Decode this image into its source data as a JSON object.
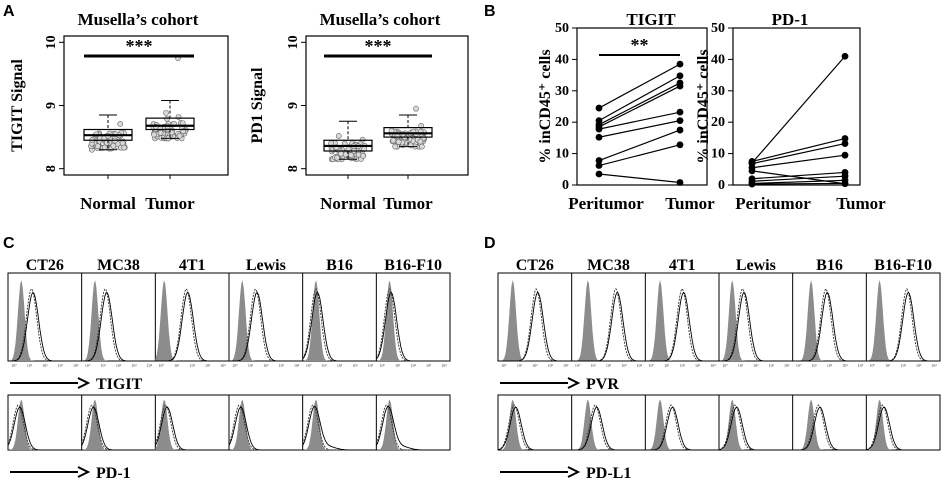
{
  "chart_data": [
    {
      "panel": "A",
      "type": "box",
      "title": "Musella’s cohort",
      "ylabel": "TIGIT Signal",
      "categories": [
        "Normal",
        "Tumor"
      ],
      "yticks": [
        "8",
        "9",
        "10"
      ],
      "ylim": [
        7.9,
        10.1
      ],
      "boxes": [
        {
          "min": 8.3,
          "q1": 8.45,
          "median": 8.53,
          "q3": 8.62,
          "max": 8.85
        },
        {
          "min": 8.48,
          "q1": 8.62,
          "median": 8.68,
          "q3": 8.8,
          "max": 9.08
        }
      ],
      "outliers": [
        [],
        [
          9.75
        ]
      ],
      "significance": "***"
    },
    {
      "panel": "A",
      "type": "box",
      "title": "Musella’s cohort",
      "ylabel": "PD1 Signal",
      "categories": [
        "Normal",
        "Tumor"
      ],
      "yticks": [
        "8",
        "9",
        "10"
      ],
      "ylim": [
        7.9,
        10.1
      ],
      "boxes": [
        {
          "min": 8.15,
          "q1": 8.28,
          "median": 8.36,
          "q3": 8.45,
          "max": 8.75
        },
        {
          "min": 8.35,
          "q1": 8.5,
          "median": 8.56,
          "q3": 8.65,
          "max": 8.85
        }
      ],
      "outliers": [
        [],
        [
          8.95
        ]
      ],
      "significance": "***"
    },
    {
      "panel": "B",
      "type": "paired-line",
      "title": "TIGIT",
      "ylabel": "% inCD45⁺ cells",
      "categories": [
        "Peritumor",
        "Tumor"
      ],
      "yticks": [
        "0",
        "10",
        "20",
        "30",
        "40",
        "50"
      ],
      "ylim": [
        0,
        50
      ],
      "pairs": [
        [
          3.5,
          0.8
        ],
        [
          6.2,
          12.8
        ],
        [
          7.8,
          17.5
        ],
        [
          15.2,
          20.5
        ],
        [
          17.8,
          23.2
        ],
        [
          18.5,
          31.5
        ],
        [
          19.2,
          32.5
        ],
        [
          20.5,
          34.8
        ],
        [
          24.5,
          38.5
        ]
      ],
      "significance": "**"
    },
    {
      "panel": "B",
      "type": "paired-line",
      "title": "PD-1",
      "ylabel": "% inCD45⁺ cells",
      "categories": [
        "Peritumor",
        "Tumor"
      ],
      "yticks": [
        "0",
        "10",
        "20",
        "30",
        "40",
        "50"
      ],
      "ylim": [
        0,
        50
      ],
      "pairs": [
        [
          0.3,
          0.5
        ],
        [
          0.5,
          1.5
        ],
        [
          1.2,
          2.8
        ],
        [
          2.0,
          4.0
        ],
        [
          4.5,
          0.4
        ],
        [
          5.5,
          9.5
        ],
        [
          6.8,
          13.2
        ],
        [
          7.5,
          14.8
        ],
        [
          7.0,
          41.0
        ]
      ],
      "significance": ""
    },
    {
      "panel": "C",
      "type": "histogram-grid",
      "columns": [
        "CT26",
        "MC38",
        "4T1",
        "Lewis",
        "B16",
        "B16-F10"
      ],
      "rows": [
        "TIGIT",
        "PD-1"
      ]
    },
    {
      "panel": "D",
      "type": "histogram-grid",
      "columns": [
        "CT26",
        "MC38",
        "4T1",
        "Lewis",
        "B16",
        "B16-F10"
      ],
      "rows": [
        "PVR",
        "PD-L1"
      ]
    }
  ],
  "panel_letters": {
    "a": "A",
    "b": "B",
    "c": "C",
    "d": "D"
  },
  "tiny_tick_labels": [
    "10⁰",
    "10¹",
    "10²",
    "10³",
    "10⁴"
  ]
}
